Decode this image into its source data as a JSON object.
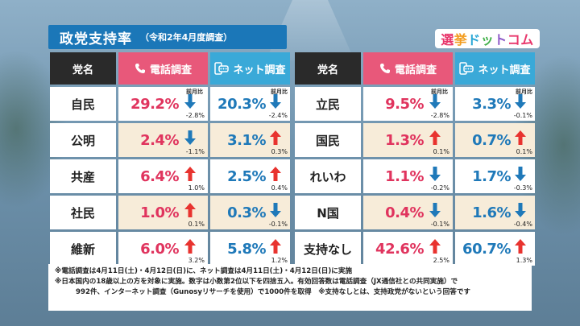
{
  "title": {
    "main": "政党支持率",
    "sub": "（令和2年4月度調査）"
  },
  "logo": [
    "選",
    "挙",
    "ド",
    "ッ",
    "ト",
    "コム"
  ],
  "headers": {
    "party": "党名",
    "phone": "電話調査",
    "net": "ネット調査",
    "prev_label": "前月比"
  },
  "colors": {
    "phone_accent": "#e8587a",
    "net_accent": "#3aa9d8",
    "up_arrow": "#e8332f",
    "down_arrow": "#1f79b9"
  },
  "left_rows": [
    {
      "party": "自民",
      "phone": "29.2%",
      "phone_dir": "down",
      "phone_chg": "-2.8%",
      "net": "20.3%",
      "net_dir": "down",
      "net_chg": "-2.4%",
      "show_prev": true
    },
    {
      "party": "公明",
      "phone": "2.4%",
      "phone_dir": "down",
      "phone_chg": "-1.1%",
      "net": "3.1%",
      "net_dir": "up",
      "net_chg": "0.3%",
      "show_prev": false
    },
    {
      "party": "共産",
      "phone": "6.4%",
      "phone_dir": "up",
      "phone_chg": "1.0%",
      "net": "2.5%",
      "net_dir": "up",
      "net_chg": "0.4%",
      "show_prev": false
    },
    {
      "party": "社民",
      "phone": "1.0%",
      "phone_dir": "up",
      "phone_chg": "0.1%",
      "net": "0.3%",
      "net_dir": "down",
      "net_chg": "-0.1%",
      "show_prev": false
    },
    {
      "party": "維新",
      "phone": "6.0%",
      "phone_dir": "up",
      "phone_chg": "3.2%",
      "net": "5.8%",
      "net_dir": "up",
      "net_chg": "1.2%",
      "show_prev": false
    }
  ],
  "right_rows": [
    {
      "party": "立民",
      "phone": "9.5%",
      "phone_dir": "down",
      "phone_chg": "-2.8%",
      "net": "3.3%",
      "net_dir": "down",
      "net_chg": "-0.1%",
      "show_prev": true
    },
    {
      "party": "国民",
      "phone": "1.3%",
      "phone_dir": "up",
      "phone_chg": "0.1%",
      "net": "0.7%",
      "net_dir": "up",
      "net_chg": "0.1%",
      "show_prev": false
    },
    {
      "party": "れいわ",
      "phone": "1.1%",
      "phone_dir": "down",
      "phone_chg": "-0.2%",
      "net": "1.7%",
      "net_dir": "down",
      "net_chg": "-0.3%",
      "show_prev": false
    },
    {
      "party": "N国",
      "phone": "0.4%",
      "phone_dir": "down",
      "phone_chg": "-0.1%",
      "net": "1.6%",
      "net_dir": "down",
      "net_chg": "-0.4%",
      "show_prev": false
    },
    {
      "party": "支持なし",
      "phone": "42.6%",
      "phone_dir": "up",
      "phone_chg": "2.5%",
      "net": "60.7%",
      "net_dir": "up",
      "net_chg": "1.3%",
      "show_prev": false
    }
  ],
  "notes": [
    "※電話調査は4月11日(土)・4月12日(日)に、ネット調査は4月11日(土)・4月12日(日)に実施",
    "※日本国内の18歳以上の方を対象に実施。数字は小数第2位以下を四捨五入。有効回答数は電話調査（JX通信社との共同実施）で",
    "992件、インターネット調査（Gunosyリサーチを使用）で1000件を取得　※支持なしとは、支持政党がないという回答です"
  ]
}
